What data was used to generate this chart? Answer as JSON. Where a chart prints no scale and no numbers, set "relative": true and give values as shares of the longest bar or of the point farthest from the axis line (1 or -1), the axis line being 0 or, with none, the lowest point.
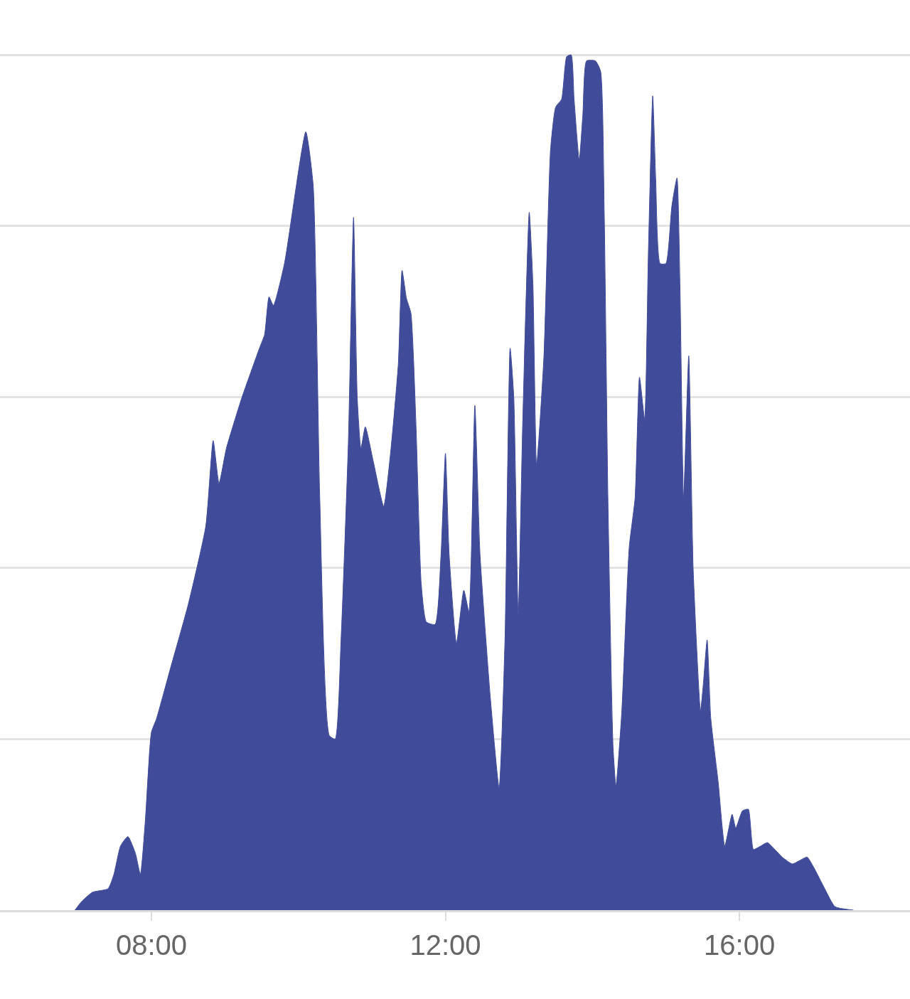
{
  "chart_data": {
    "type": "area",
    "relative": true,
    "grid": "y",
    "color": "#404c9a",
    "x": [
      6.96,
      7.05,
      7.2,
      7.41,
      7.49,
      7.58,
      7.68,
      7.78,
      7.85,
      7.92,
      8.0,
      8.07,
      8.26,
      8.5,
      8.74,
      8.84,
      8.92,
      9.02,
      9.23,
      9.47,
      9.54,
      9.6,
      9.66,
      9.81,
      10.1,
      10.2,
      10.29,
      10.42,
      10.5,
      10.58,
      10.68,
      10.75,
      10.8,
      10.85,
      10.91,
      11.02,
      11.16,
      11.26,
      11.36,
      11.41,
      11.47,
      11.53,
      11.6,
      11.67,
      11.74,
      11.86,
      11.94,
      12.0,
      12.05,
      12.15,
      12.25,
      12.32,
      12.4,
      12.47,
      12.61,
      12.73,
      12.81,
      12.88,
      12.93,
      12.99,
      13.05,
      13.14,
      13.19,
      13.24,
      13.34,
      13.43,
      13.5,
      13.58,
      13.65,
      13.71,
      13.75,
      13.82,
      13.87,
      13.92,
      14.04,
      14.11,
      14.16,
      14.21,
      14.28,
      14.32,
      14.4,
      14.5,
      14.58,
      14.64,
      14.71,
      14.76,
      14.82,
      14.86,
      14.92,
      15.0,
      15.08,
      15.15,
      15.19,
      15.24,
      15.31,
      15.37,
      15.47,
      15.51,
      15.56,
      15.61,
      15.71,
      15.8,
      15.9,
      15.95,
      16.04,
      16.12,
      16.19,
      16.29,
      16.38,
      16.48,
      16.58,
      16.72,
      16.82,
      16.92,
      17.01,
      17.16,
      17.3,
      17.55
    ],
    "values": [
      0,
      0.01,
      0.021,
      0.025,
      0.042,
      0.075,
      0.086,
      0.067,
      0.042,
      0.108,
      0.208,
      0.224,
      0.283,
      0.357,
      0.449,
      0.549,
      0.499,
      0.54,
      0.599,
      0.657,
      0.673,
      0.717,
      0.707,
      0.756,
      0.91,
      0.848,
      0.482,
      0.204,
      0.2,
      0.316,
      0.549,
      0.81,
      0.599,
      0.54,
      0.565,
      0.524,
      0.472,
      0.54,
      0.64,
      0.748,
      0.715,
      0.698,
      0.565,
      0.382,
      0.337,
      0.334,
      0.416,
      0.534,
      0.416,
      0.312,
      0.374,
      0.349,
      0.59,
      0.416,
      0.249,
      0.143,
      0.316,
      0.657,
      0.599,
      0.345,
      0.565,
      0.816,
      0.732,
      0.52,
      0.648,
      0.889,
      0.939,
      0.948,
      0.998,
      1,
      0.948,
      0.877,
      0.931,
      0.993,
      0.993,
      0.981,
      0.815,
      0.482,
      0.191,
      0.145,
      0.233,
      0.424,
      0.482,
      0.623,
      0.574,
      0.765,
      0.952,
      0.856,
      0.756,
      0.756,
      0.823,
      0.856,
      0.732,
      0.482,
      0.648,
      0.399,
      0.233,
      0.266,
      0.316,
      0.224,
      0.15,
      0.075,
      0.112,
      0.096,
      0.116,
      0.118,
      0.071,
      0.075,
      0.079,
      0.071,
      0.062,
      0.054,
      0.058,
      0.062,
      0.05,
      0.025,
      0.004,
      0
    ],
    "xlim": [
      5.94,
      18.32
    ],
    "xticks": [
      {
        "value": 8,
        "label": "08:00"
      },
      {
        "value": 12,
        "label": "12:00"
      },
      {
        "value": 16,
        "label": "16:00"
      }
    ]
  }
}
